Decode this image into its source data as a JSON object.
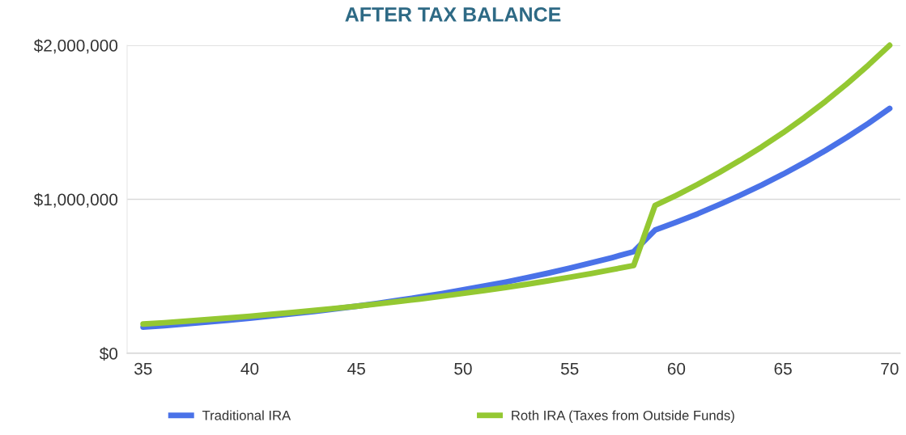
{
  "chart_data": {
    "type": "line",
    "title": "AFTER TAX BALANCE",
    "x": [
      35,
      36,
      37,
      38,
      39,
      40,
      41,
      42,
      43,
      44,
      45,
      46,
      47,
      48,
      49,
      50,
      51,
      52,
      53,
      54,
      55,
      56,
      57,
      58,
      59,
      60,
      61,
      62,
      63,
      64,
      65,
      66,
      67,
      68,
      69,
      70
    ],
    "series": [
      {
        "name": "Traditional IRA",
        "color": "#4a72e8",
        "values": [
          170000,
          180000,
          191000,
          203000,
          215000,
          228000,
          242000,
          257000,
          272000,
          289000,
          306000,
          325000,
          345000,
          366000,
          388000,
          412000,
          437000,
          463000,
          491000,
          521000,
          553000,
          587000,
          622000,
          660000,
          800000,
          852000,
          906000,
          965000,
          1027000,
          1093000,
          1163000,
          1238000,
          1318000,
          1403000,
          1493000,
          1590000
        ]
      },
      {
        "name": "Roth IRA (Taxes from Outside Funds)",
        "color": "#94c832",
        "values": [
          190000,
          199000,
          209000,
          219000,
          230000,
          241000,
          253000,
          265000,
          278000,
          292000,
          306000,
          321000,
          337000,
          353000,
          371000,
          389000,
          408000,
          428000,
          449000,
          471000,
          494000,
          518000,
          544000,
          570000,
          960000,
          1026000,
          1097000,
          1173000,
          1254000,
          1340000,
          1432000,
          1531000,
          1637000,
          1750000,
          1871000,
          2000000
        ]
      }
    ],
    "xlim": [
      34.25,
      70.5
    ],
    "xticks": [
      35,
      40,
      45,
      50,
      55,
      60,
      65,
      70
    ],
    "ylim": [
      0,
      2000000
    ],
    "yticks": [
      {
        "value": 0,
        "label": "$0"
      },
      {
        "value": 1000000,
        "label": "$1,000,000"
      },
      {
        "value": 2000000,
        "label": "$2,000,000"
      }
    ],
    "grid": "y",
    "legend": "bottom",
    "marker": "none",
    "line_style": "solid"
  }
}
